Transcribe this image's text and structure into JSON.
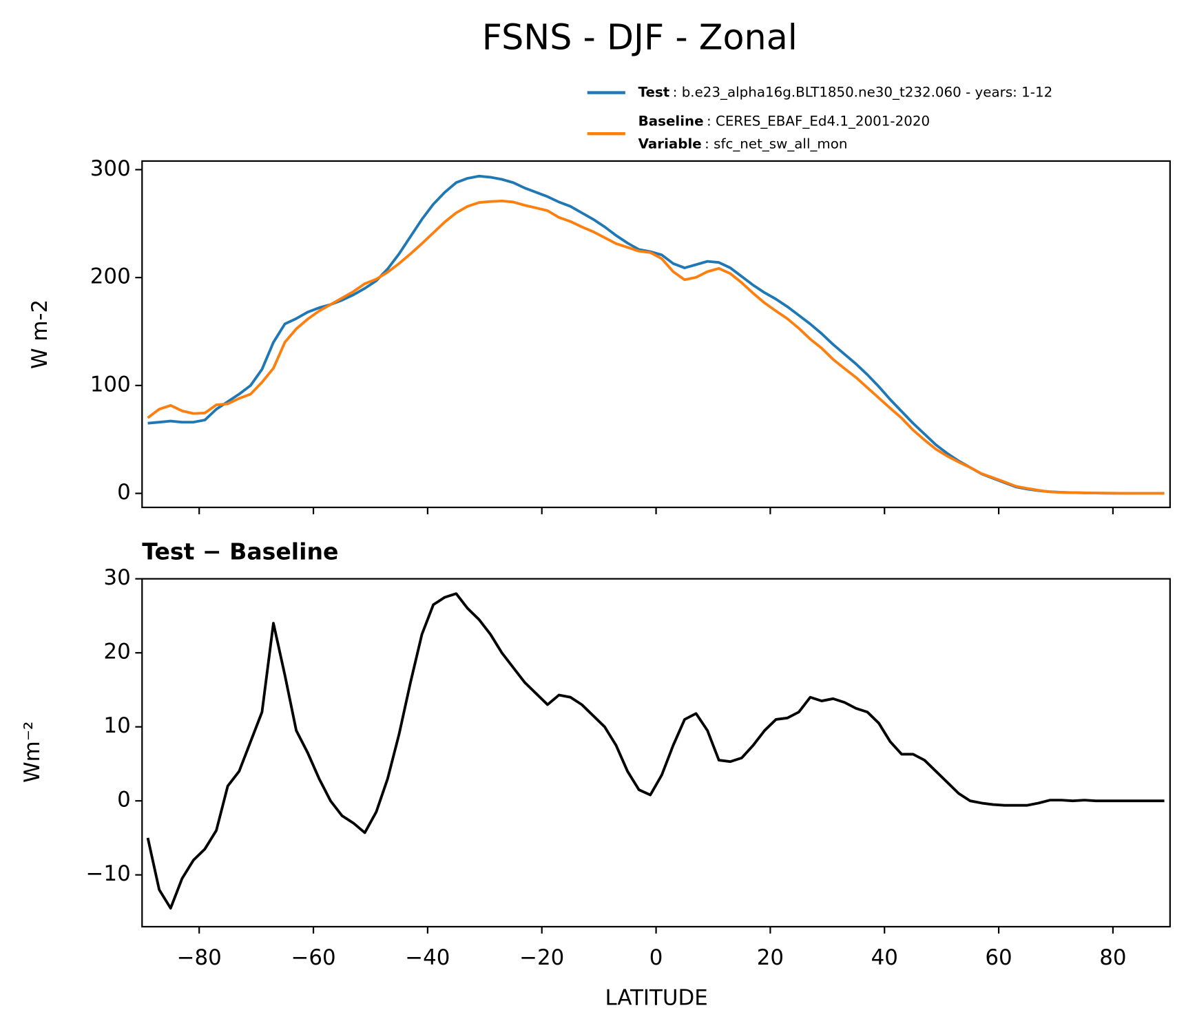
{
  "chart_data": [
    {
      "type": "line",
      "title": "FSNS - DJF - Zonal",
      "ylabel": "W m-2",
      "x": [
        -89,
        -87,
        -85,
        -83,
        -81,
        -79,
        -77,
        -75,
        -73,
        -71,
        -69,
        -67,
        -65,
        -63,
        -61,
        -59,
        -57,
        -55,
        -53,
        -51,
        -49,
        -47,
        -45,
        -43,
        -41,
        -39,
        -37,
        -35,
        -33,
        -31,
        -29,
        -27,
        -25,
        -23,
        -21,
        -19,
        -17,
        -15,
        -13,
        -11,
        -9,
        -7,
        -5,
        -3,
        -1,
        1,
        3,
        5,
        7,
        9,
        11,
        13,
        15,
        17,
        19,
        21,
        23,
        25,
        27,
        29,
        31,
        33,
        35,
        37,
        39,
        41,
        43,
        45,
        47,
        49,
        51,
        53,
        55,
        57,
        59,
        61,
        63,
        65,
        67,
        69,
        71,
        73,
        75,
        77,
        79,
        81,
        83,
        85,
        87,
        89
      ],
      "series": [
        {
          "name": "Test",
          "description": ": b.e23_alpha16g.BLT1850.ne30_t232.060 - years: 1-12",
          "color": "#1f77b4",
          "values": [
            65,
            66,
            67,
            66,
            66,
            68,
            78,
            85,
            92,
            100,
            115,
            140,
            157,
            162,
            168,
            172,
            175,
            179,
            184,
            190,
            197,
            208,
            222,
            238,
            254,
            268,
            279,
            288,
            292,
            294,
            293,
            291,
            288,
            283,
            279,
            275,
            270,
            266,
            260,
            254,
            247,
            239,
            232,
            226,
            224,
            221,
            213,
            209,
            212,
            215,
            214,
            209,
            201,
            193,
            186,
            180,
            173,
            165,
            157,
            148,
            138,
            129,
            120,
            110,
            99,
            87,
            76,
            65,
            55,
            45,
            37,
            30,
            24,
            18,
            14,
            10,
            6,
            4,
            2.5,
            1.5,
            1,
            0.7,
            0.5,
            0.3,
            0.2,
            0.1,
            0,
            0,
            0,
            0
          ]
        },
        {
          "name": "Baseline",
          "description": ": CERES_EBAF_Ed4.1_2001-2020",
          "variable_name": "Variable",
          "variable": ": sfc_net_sw_all_mon",
          "color": "#ff7f0e",
          "values": [
            70,
            78,
            81.5,
            76.5,
            74,
            74.5,
            82,
            83,
            88,
            92,
            103,
            116,
            140,
            152.5,
            161.5,
            169,
            175,
            181,
            187,
            194.3,
            198.5,
            205,
            213,
            222,
            231.5,
            241.5,
            251.5,
            260,
            266,
            269.5,
            270.5,
            271,
            270,
            267,
            264.5,
            262,
            255.7,
            252,
            247,
            242.5,
            237,
            231.5,
            228,
            224.5,
            223.2,
            217.5,
            205.5,
            198,
            200.2,
            205.5,
            208.5,
            203.7,
            195.2,
            185.5,
            176.5,
            169,
            161.8,
            153,
            143,
            134.5,
            124.2,
            115.7,
            107.5,
            98,
            88.5,
            79,
            69.7,
            58.7,
            49.5,
            41,
            34.5,
            29,
            24,
            18.3,
            14.5,
            10.6,
            6.6,
            4.6,
            2.8,
            1.4,
            0.9,
            0.7,
            0.4,
            0.3,
            0.2,
            0.1,
            0,
            0,
            0,
            0
          ]
        }
      ],
      "xlim": [
        -90,
        90
      ],
      "xticks": [
        -80,
        -60,
        -40,
        -20,
        0,
        20,
        40,
        60,
        80
      ],
      "show_xticklabels": false,
      "ylim": [
        -13,
        308
      ],
      "yticks": [
        0,
        100,
        200,
        300
      ]
    },
    {
      "type": "line",
      "title": "Test − Baseline",
      "xlabel": "LATITUDE",
      "ylabel": "Wm⁻²",
      "x": [
        -89,
        -87,
        -85,
        -83,
        -81,
        -79,
        -77,
        -75,
        -73,
        -71,
        -69,
        -67,
        -65,
        -63,
        -61,
        -59,
        -57,
        -55,
        -53,
        -51,
        -49,
        -47,
        -45,
        -43,
        -41,
        -39,
        -37,
        -35,
        -33,
        -31,
        -29,
        -27,
        -25,
        -23,
        -21,
        -19,
        -17,
        -15,
        -13,
        -11,
        -9,
        -7,
        -5,
        -3,
        -1,
        1,
        3,
        5,
        7,
        9,
        11,
        13,
        15,
        17,
        19,
        21,
        23,
        25,
        27,
        29,
        31,
        33,
        35,
        37,
        39,
        41,
        43,
        45,
        47,
        49,
        51,
        53,
        55,
        57,
        59,
        61,
        63,
        65,
        67,
        69,
        71,
        73,
        75,
        77,
        79,
        81,
        83,
        85,
        87,
        89
      ],
      "series": [
        {
          "color": "#000000",
          "values": [
            -5,
            -12,
            -14.5,
            -10.5,
            -8,
            -6.5,
            -4,
            2,
            4,
            8,
            12,
            24,
            17,
            9.5,
            6.5,
            3,
            0,
            -2,
            -3,
            -4.3,
            -1.5,
            3,
            9,
            16,
            22.5,
            26.5,
            27.5,
            28,
            26,
            24.5,
            22.5,
            20,
            18,
            16,
            14.5,
            13,
            14.3,
            14,
            13,
            11.5,
            10,
            7.5,
            4,
            1.5,
            0.8,
            3.5,
            7.5,
            11,
            11.8,
            9.5,
            5.5,
            5.3,
            5.8,
            7.5,
            9.5,
            11,
            11.2,
            12,
            14,
            13.5,
            13.8,
            13.3,
            12.5,
            12,
            10.5,
            8,
            6.3,
            6.3,
            5.5,
            4,
            2.5,
            1,
            0,
            -0.3,
            -0.5,
            -0.6,
            -0.6,
            -0.6,
            -0.3,
            0.1,
            0.1,
            0,
            0.1,
            0,
            0,
            0,
            0,
            0,
            0,
            0
          ]
        }
      ],
      "xlim": [
        -90,
        90
      ],
      "xticks": [
        {
          "value": -80,
          "label": "−80"
        },
        {
          "value": -60,
          "label": "−60"
        },
        {
          "value": -40,
          "label": "−40"
        },
        {
          "value": -20,
          "label": "−20"
        },
        0,
        20,
        40,
        60,
        80
      ],
      "show_xticklabels": true,
      "ylim": [
        -17,
        30
      ],
      "yticks": [
        {
          "value": -10,
          "label": "−10"
        },
        0,
        10,
        20,
        30
      ]
    }
  ]
}
